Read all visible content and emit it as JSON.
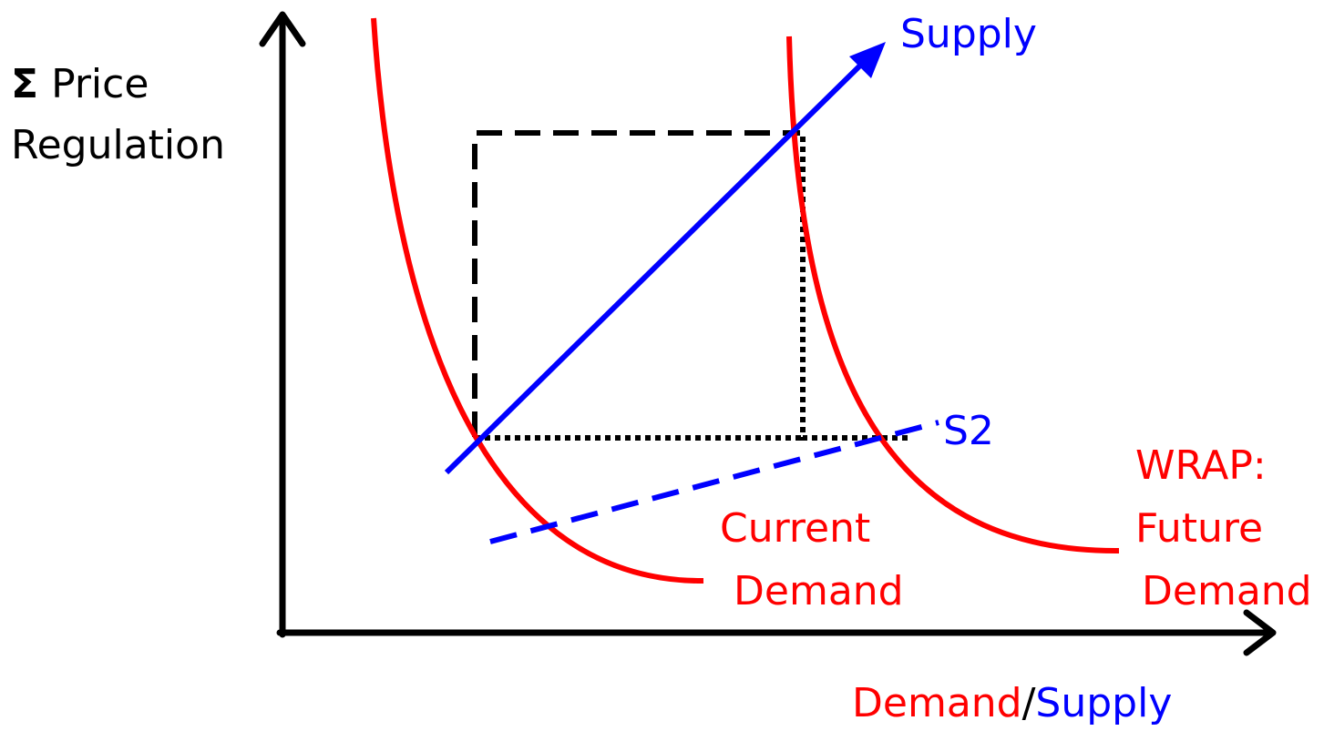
{
  "y_axis_label": {
    "symbol": "Σ",
    "lines": [
      "Price",
      "Regulation"
    ]
  },
  "x_axis_label": {
    "demand": "Demand",
    "separator": "/",
    "supply": "Supply"
  },
  "curves": {
    "supply": {
      "label": "Supply"
    },
    "s2": {
      "label": "S2"
    },
    "current_demand": {
      "label_lines": [
        "Current",
        "Demand"
      ]
    },
    "future_demand": {
      "label_lines": [
        "WRAP:",
        "Future",
        "Demand"
      ]
    }
  }
}
